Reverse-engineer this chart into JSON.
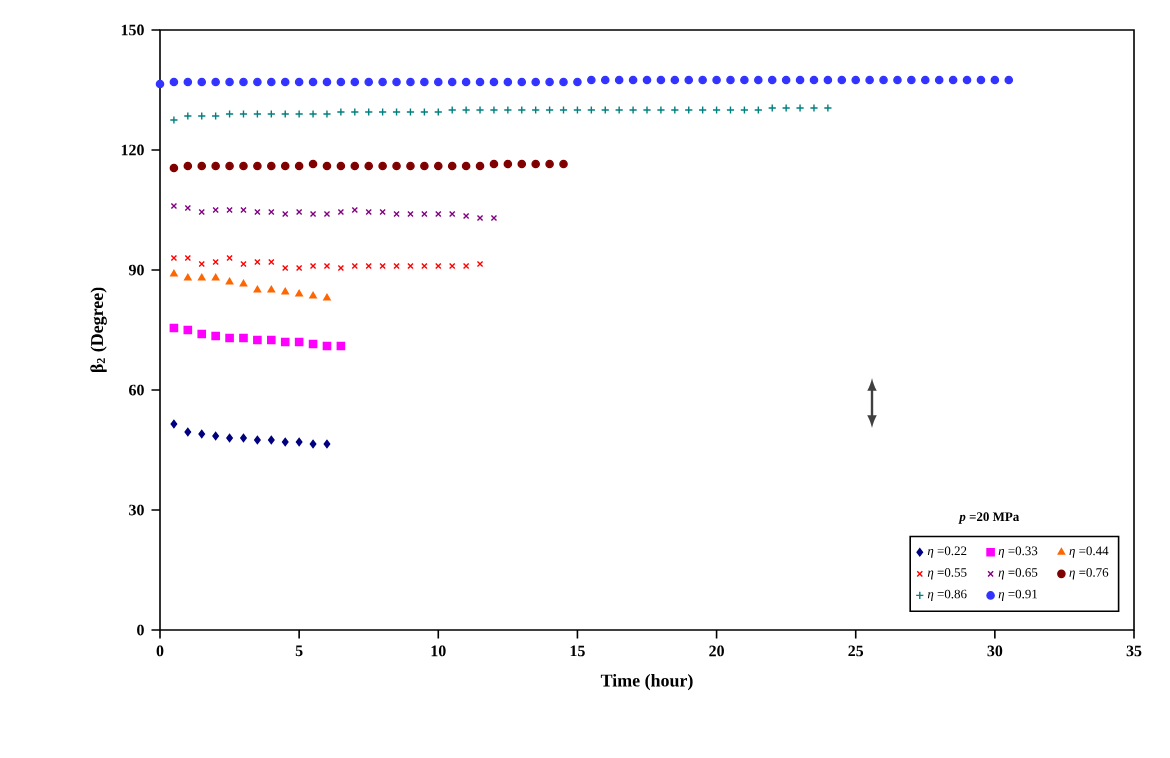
{
  "chart_data": {
    "type": "scatter",
    "xlabel": "Time (hour)",
    "ylabel": "β$_{2}$ (Degree)",
    "xlim": [
      0,
      35
    ],
    "ylim": [
      0,
      150
    ],
    "xticks": [
      0,
      5,
      10,
      15,
      20,
      25,
      30,
      35
    ],
    "yticks": [
      0,
      30,
      60,
      90,
      120,
      150
    ],
    "legend": "bottom right",
    "annotations": [
      "*p* =20 MPa"
    ],
    "series": [
      {
        "name": "*η* =0.22",
        "color": "#000080",
        "marker": "diamond",
        "x": [
          0.5,
          1,
          1.5,
          2,
          2.5,
          3,
          3.5,
          4,
          4.5,
          5,
          5.5,
          6
        ],
        "values": [
          51.5,
          49.5,
          49,
          48.5,
          48,
          48,
          47.5,
          47.5,
          47,
          47,
          46.5,
          46.5
        ]
      },
      {
        "name": "*η* =0.33",
        "color": "#ff00ff",
        "marker": "square",
        "x": [
          0.5,
          1,
          1.5,
          2,
          2.5,
          3,
          3.5,
          4,
          4.5,
          5,
          5.5,
          6,
          6.5
        ],
        "values": [
          75.5,
          75,
          74,
          73.5,
          73,
          73,
          72.5,
          72.5,
          72,
          72,
          71.5,
          71,
          71
        ]
      },
      {
        "name": "*η* =0.44",
        "color": "#ff6600",
        "marker": "triangle",
        "x": [
          0.5,
          1,
          1.5,
          2,
          2.5,
          3,
          3.5,
          4,
          4.5,
          5,
          5.5,
          6
        ],
        "values": [
          89,
          88,
          88,
          88,
          87,
          86.5,
          85,
          85,
          84.5,
          84,
          83.5,
          83
        ]
      },
      {
        "name": "*η* =0.55",
        "color": "#ff0000",
        "marker": "cross",
        "x": [
          0.5,
          1,
          1.5,
          2,
          2.5,
          3,
          3.5,
          4,
          4.5,
          5,
          5.5,
          6,
          6.5,
          7,
          7.5,
          8,
          8.5,
          9,
          9.5,
          10,
          10.5,
          11,
          11.5
        ],
        "values": [
          93,
          93,
          91.5,
          92,
          93,
          91.5,
          92,
          92,
          90.5,
          90.5,
          91,
          91,
          90.5,
          91,
          91,
          91,
          91,
          91,
          91,
          91,
          91,
          91,
          91.5
        ]
      },
      {
        "name": "*η* =0.65",
        "color": "#800080",
        "marker": "cross",
        "x": [
          0.5,
          1,
          1.5,
          2,
          2.5,
          3,
          3.5,
          4,
          4.5,
          5,
          5.5,
          6,
          6.5,
          7,
          7.5,
          8,
          8.5,
          9,
          9.5,
          10,
          10.5,
          11,
          11.5,
          12
        ],
        "values": [
          106,
          105.5,
          104.5,
          105,
          105,
          105,
          104.5,
          104.5,
          104,
          104.5,
          104,
          104,
          104.5,
          105,
          104.5,
          104.5,
          104,
          104,
          104,
          104,
          104,
          103.5,
          103,
          103
        ]
      },
      {
        "name": "*η* =0.76",
        "color": "#800000",
        "marker": "circle",
        "x": [
          0.5,
          1,
          1.5,
          2,
          2.5,
          3,
          3.5,
          4,
          4.5,
          5,
          5.5,
          6,
          6.5,
          7,
          7.5,
          8,
          8.5,
          9,
          9.5,
          10,
          10.5,
          11,
          11.5,
          12,
          12.5,
          13,
          13.5,
          14,
          14.5
        ],
        "values": [
          115.5,
          116,
          116,
          116,
          116,
          116,
          116,
          116,
          116,
          116,
          116.5,
          116,
          116,
          116,
          116,
          116,
          116,
          116,
          116,
          116,
          116,
          116,
          116,
          116.5,
          116.5,
          116.5,
          116.5,
          116.5,
          116.5
        ]
      },
      {
        "name": "*η* =0.86",
        "color": "#008080",
        "marker": "plus",
        "x": [
          0.5,
          1,
          1.5,
          2,
          2.5,
          3,
          3.5,
          4,
          4.5,
          5,
          5.5,
          6,
          6.5,
          7,
          7.5,
          8,
          8.5,
          9,
          9.5,
          10,
          10.5,
          11,
          11.5,
          12,
          12.5,
          13,
          13.5,
          14,
          14.5,
          15,
          15.5,
          16,
          16.5,
          17,
          17.5,
          18,
          18.5,
          19,
          19.5,
          20,
          20.5,
          21,
          21.5,
          22,
          22.5,
          23,
          23.5,
          24
        ],
        "values": [
          127.5,
          128.5,
          128.5,
          128.5,
          129,
          129,
          129,
          129,
          129,
          129,
          129,
          129,
          129.5,
          129.5,
          129.5,
          129.5,
          129.5,
          129.5,
          129.5,
          129.5,
          130,
          130,
          130,
          130,
          130,
          130,
          130,
          130,
          130,
          130,
          130,
          130,
          130,
          130,
          130,
          130,
          130,
          130,
          130,
          130,
          130,
          130,
          130,
          130.5,
          130.5,
          130.5,
          130.5,
          130.5
        ]
      },
      {
        "name": "*η* =0.91",
        "color": "#3333ff",
        "marker": "circle",
        "x": [
          0,
          0.5,
          1,
          1.5,
          2,
          2.5,
          3,
          3.5,
          4,
          4.5,
          5,
          5.5,
          6,
          6.5,
          7,
          7.5,
          8,
          8.5,
          9,
          9.5,
          10,
          10.5,
          11,
          11.5,
          12,
          12.5,
          13,
          13.5,
          14,
          14.5,
          15,
          15.5,
          16,
          16.5,
          17,
          17.5,
          18,
          18.5,
          19,
          19.5,
          20,
          20.5,
          21,
          21.5,
          22,
          22.5,
          23,
          23.5,
          24,
          24.5,
          25,
          25.5,
          26,
          26.5,
          27,
          27.5,
          28,
          28.5,
          29,
          29.5,
          30,
          30.5
        ],
        "values": [
          136.5,
          137,
          137,
          137,
          137,
          137,
          137,
          137,
          137,
          137,
          137,
          137,
          137,
          137,
          137,
          137,
          137,
          137,
          137,
          137,
          137,
          137,
          137,
          137,
          137,
          137,
          137,
          137,
          137,
          137,
          137,
          137.5,
          137.5,
          137.5,
          137.5,
          137.5,
          137.5,
          137.5,
          137.5,
          137.5,
          137.5,
          137.5,
          137.5,
          137.5,
          137.5,
          137.5,
          137.5,
          137.5,
          137.5,
          137.5,
          137.5,
          137.5,
          137.5,
          137.5,
          137.5,
          137.5,
          137.5,
          137.5,
          137.5,
          137.5,
          137.5,
          137.5
        ]
      }
    ]
  }
}
